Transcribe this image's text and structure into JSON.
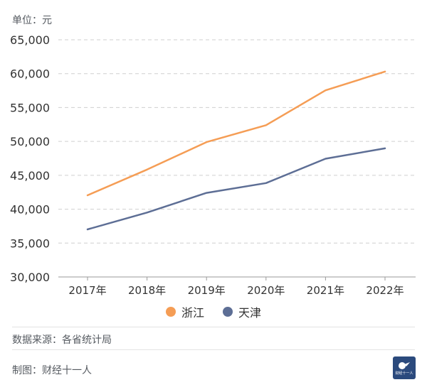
{
  "unit_label": "单位：元",
  "source": "数据来源：各省统计局",
  "credit": "制图：财经十一人",
  "logo_text": "财经十一人",
  "colors": {
    "zhejiang": "#f59d55",
    "tianjin": "#5d6e95",
    "grid": "#cfcfcf",
    "axis": "#9a9a9a"
  },
  "chart_data": {
    "type": "line",
    "x": [
      "2017年",
      "2018年",
      "2019年",
      "2020年",
      "2021年",
      "2022年"
    ],
    "ylim": [
      30000,
      65000
    ],
    "yticks": [
      30000,
      35000,
      40000,
      45000,
      50000,
      55000,
      60000,
      65000
    ],
    "ytick_labels": [
      "30,000",
      "35,000",
      "40,000",
      "45,000",
      "50,000",
      "55,000",
      "60,000",
      "65,000"
    ],
    "grid": true,
    "legend_position": "bottom",
    "series": [
      {
        "name": "浙江",
        "color": "#f59d55",
        "values": [
          42046,
          45840,
          49899,
          52397,
          57541,
          60302
        ]
      },
      {
        "name": "天津",
        "color": "#5d6e95",
        "values": [
          37022,
          39506,
          42404,
          43854,
          47449,
          48976
        ]
      }
    ]
  }
}
